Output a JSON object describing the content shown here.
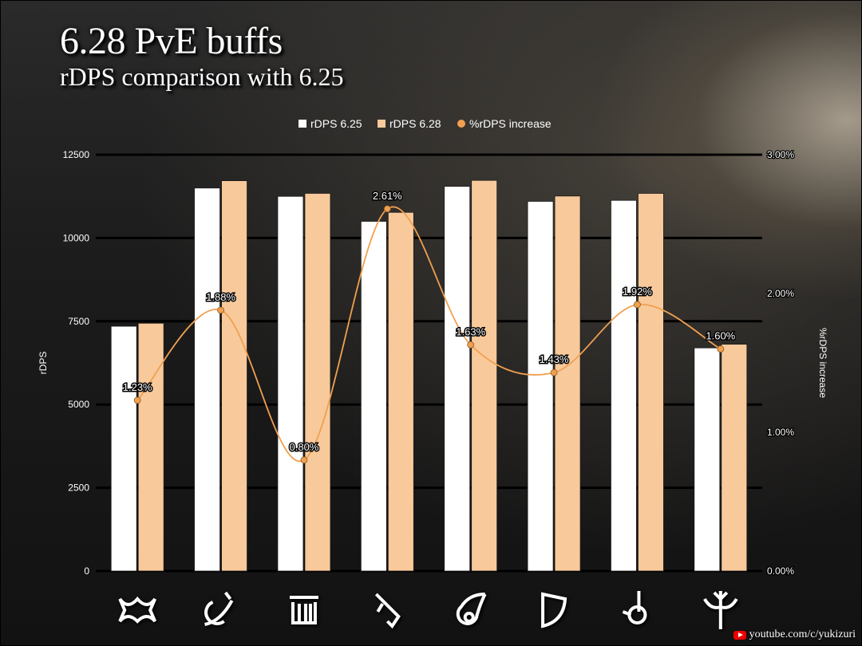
{
  "header": {
    "title": "6.28 PvE buffs",
    "subtitle": "rDPS comparison with 6.25"
  },
  "footer": {
    "channel": "youtube.com/c/yukizuri",
    "icon": "youtube-icon"
  },
  "job_icons": [
    "monk-icon",
    "reaper-icon",
    "samurai-icon",
    "ninja-icon",
    "black-mage-icon",
    "bard-icon",
    "machinist-icon",
    "dancer-icon"
  ],
  "chart_data": {
    "type": "bar",
    "categories": [
      "",
      "",
      "",
      "",
      "",
      "",
      "",
      ""
    ],
    "series": [
      {
        "name": "rDPS 6.25",
        "type": "bar",
        "color": "#ffffff",
        "values": [
          7350,
          11500,
          11250,
          10500,
          11550,
          11100,
          11130,
          6700
        ]
      },
      {
        "name": "rDPS 6.28",
        "type": "bar",
        "color": "#f8c99b",
        "values": [
          7440,
          11720,
          11340,
          10770,
          11730,
          11260,
          11340,
          6810
        ]
      },
      {
        "name": "%rDPS increase",
        "type": "line",
        "axis": "right",
        "color": "#f0a050",
        "values": [
          1.23,
          1.88,
          0.8,
          2.61,
          1.63,
          1.43,
          1.92,
          1.6
        ],
        "labels": [
          "1.23%",
          "1.88%",
          "0.80%",
          "2.61%",
          "1.63%",
          "1.43%",
          "1.92%",
          "1.60%"
        ]
      }
    ],
    "ylabel": "rDPS",
    "y2label": "%rDPS increase",
    "ylim": [
      0,
      12500
    ],
    "yticks": [
      "0",
      "2500",
      "5000",
      "7500",
      "10000",
      "12500"
    ],
    "y2lim": [
      0,
      3.0
    ],
    "y2ticks": [
      "0.00%",
      "1.00%",
      "2.00%",
      "3.00%"
    ],
    "grid": true,
    "legend": "top"
  }
}
